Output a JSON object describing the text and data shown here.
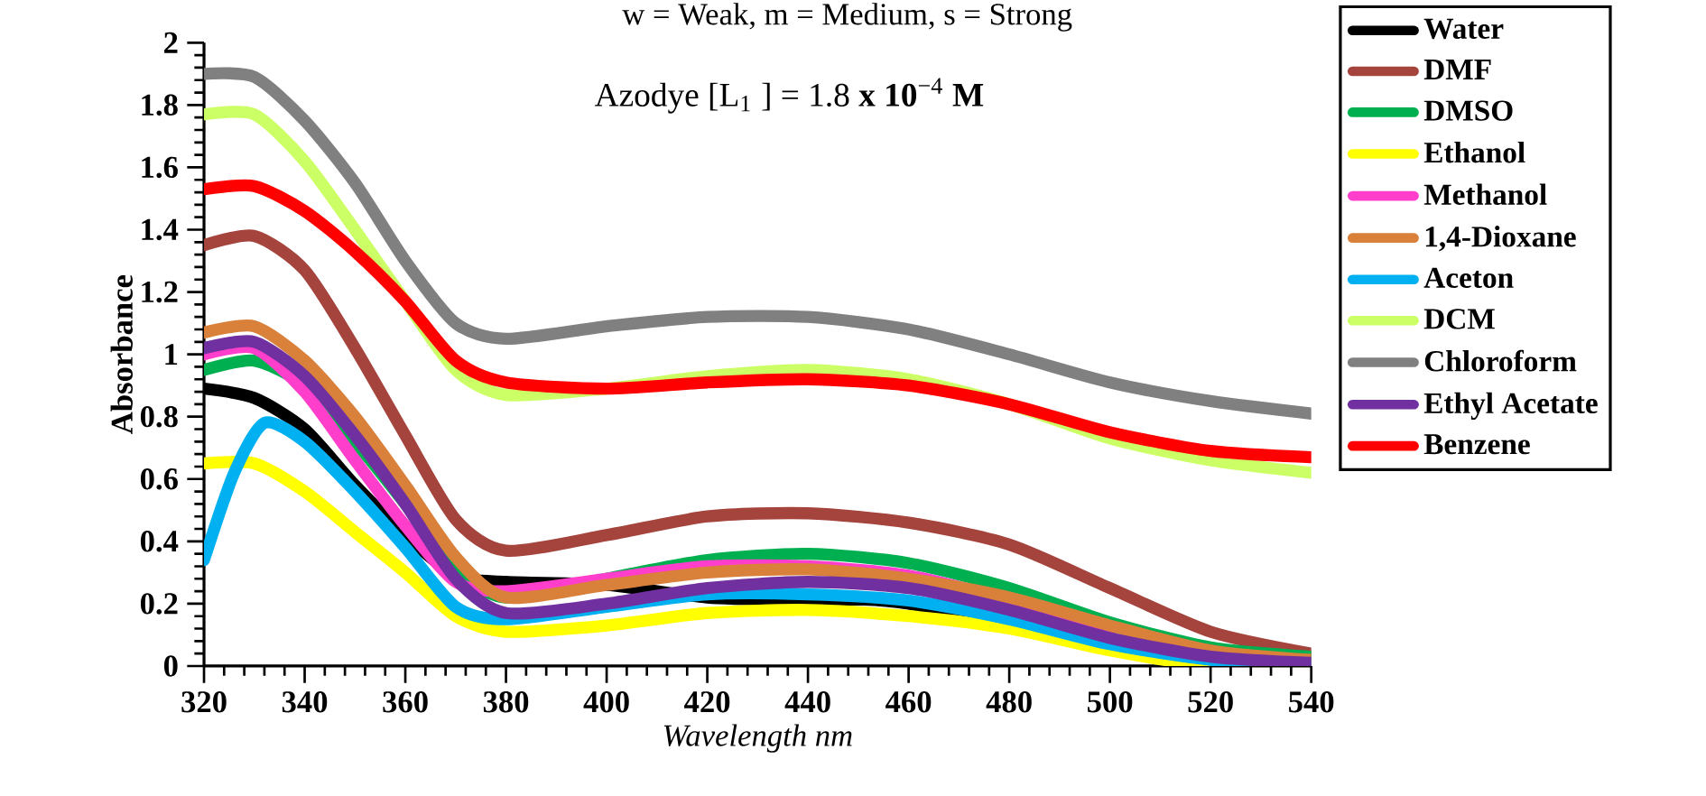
{
  "chart_data": {
    "type": "line",
    "xlabel": "Wavelength nm",
    "ylabel": "Absorbance",
    "annotations": [
      "w = Weak, m = Medium, s = Strong",
      "Azodye [L$_{1}$ ] = 1.8 **x 10**$^{−4}$ **M**"
    ],
    "x": [
      320,
      330,
      340,
      350,
      360,
      370,
      380,
      400,
      420,
      440,
      460,
      480,
      500,
      520,
      540
    ],
    "xlim": [
      320,
      540
    ],
    "xticks": [
      320,
      340,
      360,
      380,
      400,
      420,
      440,
      460,
      480,
      500,
      520,
      540
    ],
    "ylim": [
      0,
      2
    ],
    "yticks": [
      0,
      0.2,
      0.4,
      0.6,
      0.8,
      1,
      1.2,
      1.4,
      1.6,
      1.8,
      2
    ],
    "legend": "right",
    "grid": false,
    "series": [
      {
        "name": "Water",
        "color": "#000000",
        "values": [
          0.89,
          0.86,
          0.76,
          0.58,
          0.42,
          0.29,
          0.27,
          0.26,
          0.22,
          0.21,
          0.2,
          null,
          null,
          0.01,
          0.0
        ]
      },
      {
        "name": "DMF",
        "color": "#a5433d",
        "values": [
          1.35,
          1.38,
          1.27,
          1.02,
          0.74,
          0.47,
          0.37,
          0.42,
          0.48,
          0.49,
          0.46,
          0.39,
          0.25,
          0.11,
          0.04
        ]
      },
      {
        "name": "DMSO",
        "color": "#00b050",
        "values": [
          0.95,
          0.98,
          0.9,
          0.72,
          0.52,
          0.31,
          0.22,
          0.28,
          0.34,
          0.36,
          0.33,
          0.25,
          0.14,
          0.06,
          0.03
        ]
      },
      {
        "name": "Ethanol",
        "color": "#ffff00",
        "values": [
          0.65,
          0.65,
          0.56,
          0.43,
          0.3,
          0.16,
          0.11,
          0.13,
          0.17,
          0.18,
          0.16,
          0.12,
          0.05,
          0.0,
          0.0
        ]
      },
      {
        "name": "Methanol",
        "color": "#ff3fcc",
        "values": [
          1.0,
          1.02,
          0.88,
          0.66,
          0.45,
          0.27,
          0.24,
          0.28,
          0.32,
          0.32,
          0.29,
          0.21,
          0.11,
          null,
          null
        ]
      },
      {
        "name": "1,4-Dioxane",
        "color": "#d9813b",
        "values": [
          1.07,
          1.09,
          0.98,
          0.8,
          0.58,
          0.35,
          0.22,
          0.26,
          0.3,
          0.31,
          0.28,
          0.22,
          0.13,
          0.05,
          0.02
        ]
      },
      {
        "name": "Aceton",
        "color": "#00b0f0",
        "x": [
          320,
          326,
          332,
          340,
          350,
          360,
          370,
          380,
          400,
          420,
          440,
          460,
          480,
          500,
          520,
          540
        ],
        "values": [
          0.34,
          0.62,
          0.78,
          0.72,
          0.56,
          0.38,
          0.19,
          0.15,
          0.19,
          0.23,
          0.23,
          0.21,
          0.15,
          0.07,
          0.02,
          0.0
        ]
      },
      {
        "name": "DCM",
        "color": "#ccff66",
        "values": [
          1.77,
          1.77,
          1.62,
          1.4,
          1.17,
          0.95,
          0.87,
          0.89,
          0.93,
          0.95,
          0.92,
          0.84,
          0.73,
          0.66,
          0.62
        ]
      },
      {
        "name": "Chloroform",
        "color": "#808080",
        "values": [
          1.9,
          1.89,
          1.75,
          1.55,
          1.3,
          1.1,
          1.05,
          1.09,
          1.12,
          1.12,
          1.08,
          1.0,
          0.91,
          0.85,
          0.81
        ]
      },
      {
        "name": "Ethyl Acetate",
        "color": "#7030a0",
        "values": [
          1.02,
          1.04,
          0.93,
          0.74,
          0.52,
          0.28,
          0.17,
          0.2,
          0.25,
          0.27,
          0.25,
          0.18,
          0.09,
          0.03,
          0.01
        ]
      },
      {
        "name": "Benzene",
        "color": "#ff0000",
        "values": [
          1.53,
          1.54,
          1.46,
          1.33,
          1.17,
          0.98,
          0.91,
          0.89,
          0.91,
          0.92,
          0.9,
          0.84,
          0.75,
          0.69,
          0.67
        ]
      }
    ]
  }
}
